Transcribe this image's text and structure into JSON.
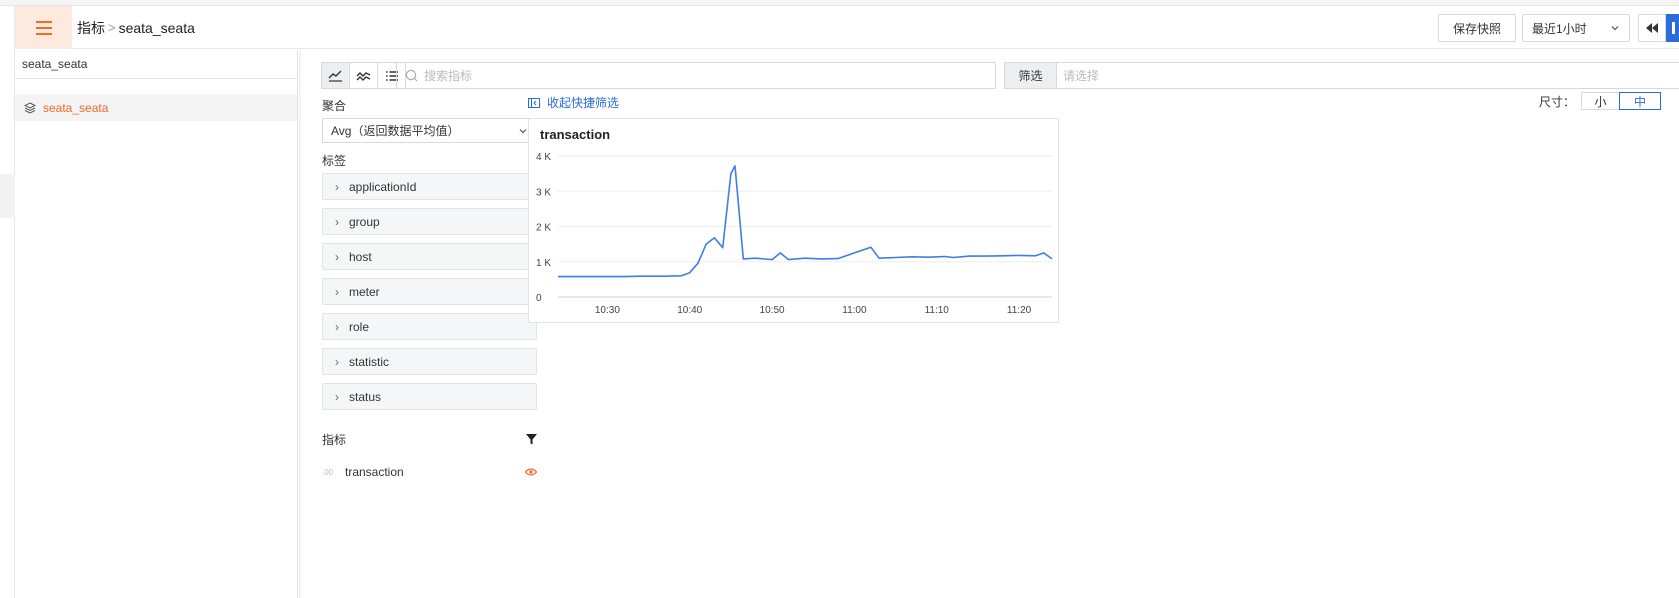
{
  "header": {
    "breadcrumb_root": "指标",
    "breadcrumb_sep": ">",
    "breadcrumb_current": "seata_seata",
    "save_snapshot": "保存快照",
    "time_range": "最近1小时"
  },
  "sidebar": {
    "title": "seata_seata",
    "items": [
      {
        "label": "seata_seata"
      }
    ]
  },
  "toolbar": {
    "search_placeholder": "搜索指标",
    "filter_label": "筛选",
    "filter_placeholder": "请选择"
  },
  "aggregation": {
    "label": "聚合",
    "value": "Avg（返回数据平均值）"
  },
  "tags": {
    "label": "标签",
    "items": [
      "applicationId",
      "group",
      "host",
      "meter",
      "role",
      "statistic",
      "status"
    ]
  },
  "metrics": {
    "label": "指标",
    "items": [
      {
        "prefix": ".00",
        "name": "transaction"
      }
    ]
  },
  "quick_filter": {
    "collapse_label": "收起快捷筛选"
  },
  "size": {
    "label": "尺寸：",
    "small": "小",
    "medium": "中"
  },
  "colors": {
    "accent": "#f06a2a",
    "primary": "#2b6cd8",
    "line": "#3d7ee8"
  },
  "chart_data": {
    "type": "line",
    "title": "transaction",
    "y_ticks": [
      "4 K",
      "3 K",
      "2 K",
      "1 K",
      "0"
    ],
    "x_ticks": [
      "10:30",
      "10:40",
      "10:50",
      "11:00",
      "11:10",
      "11:20"
    ],
    "ylim": [
      0,
      4000
    ],
    "grid": true,
    "series": [
      {
        "points": [
          [
            "10:24",
            580
          ],
          [
            "10:28",
            580
          ],
          [
            "10:32",
            580
          ],
          [
            "10:34",
            590
          ],
          [
            "10:37",
            590
          ],
          [
            "10:39",
            600
          ],
          [
            "10:40",
            690
          ],
          [
            "10:41",
            960
          ],
          [
            "10:42",
            1500
          ],
          [
            "10:43",
            1680
          ],
          [
            "10:44",
            1400
          ],
          [
            "10:45",
            3500
          ],
          [
            "10:45.5",
            3720
          ],
          [
            "10:46.5",
            1080
          ],
          [
            "10:48",
            1100
          ],
          [
            "10:50",
            1060
          ],
          [
            "10:51",
            1250
          ],
          [
            "10:52",
            1060
          ],
          [
            "10:54",
            1100
          ],
          [
            "10:56",
            1080
          ],
          [
            "10:58",
            1090
          ],
          [
            "11:00",
            1250
          ],
          [
            "11:02",
            1410
          ],
          [
            "11:03",
            1100
          ],
          [
            "11:05",
            1120
          ],
          [
            "11:07",
            1140
          ],
          [
            "11:09",
            1130
          ],
          [
            "11:11",
            1150
          ],
          [
            "11:12",
            1120
          ],
          [
            "11:14",
            1160
          ],
          [
            "11:16",
            1160
          ],
          [
            "11:18",
            1170
          ],
          [
            "11:20",
            1180
          ],
          [
            "11:22",
            1170
          ],
          [
            "11:23",
            1250
          ],
          [
            "11:24",
            1080
          ]
        ]
      }
    ]
  }
}
